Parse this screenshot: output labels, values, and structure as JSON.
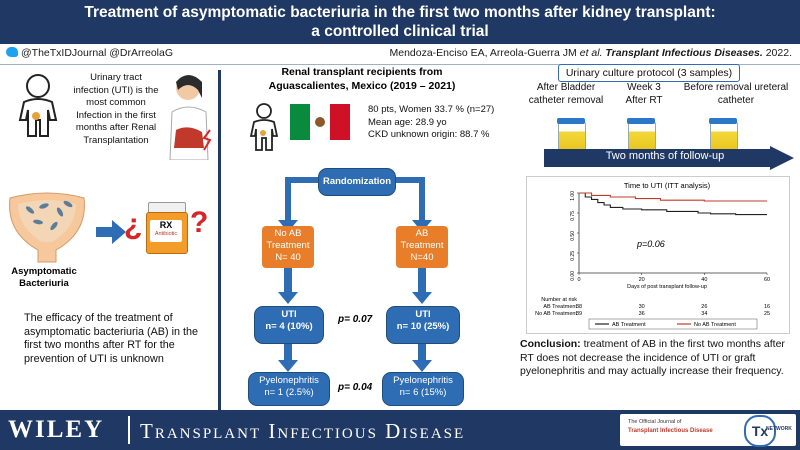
{
  "header": {
    "title_line1": "Treatment of asymptomatic bacteriuria in the first two months after kidney transplant:",
    "title_line2": "a controlled clinical trial"
  },
  "handles": {
    "twitter": "@TheTxIDJournal  @DrArreolaG",
    "citation_authors": "Mendoza-Enciso EA, Arreola-Guerra JM",
    "citation_etal": "et al.",
    "citation_journal": "Transplant Infectious Diseases.",
    "citation_year": "2022."
  },
  "left": {
    "uti_text": "Urinary tract infection (UTI) is the most common Infection in the first months after Renal Transplantation",
    "ab_label": "Asymptomatic Bacteriuria",
    "rx_label": "RX",
    "rx_sub": "Antibiotic",
    "question_mark": "?",
    "inverted_question": "¿",
    "efficacy_text": "The efficacy of the treatment of asymptomatic bacteriuria (AB) in the first two months after RT for the prevention of UTI is unknown"
  },
  "middle": {
    "cohort_title": "Renal transplant recipients from Aguascalientes, Mexico (2019 – 2021)",
    "stat1": "80 pts, Women 33.7 % (n=27)",
    "stat2": "Mean age: 28.9 yo",
    "stat3": "CKD unknown  origin: 88.7 %",
    "randomization": "Randomization",
    "no_ab_l1": "No AB",
    "no_ab_l2": "Treatment",
    "no_ab_l3": "N= 40",
    "ab_l1": "AB",
    "ab_l2": "Treatment",
    "ab_l3": "N=40",
    "uti_left_l1": "UTI",
    "uti_left_l2": "n= 4 (10%)",
    "uti_right_l1": "UTI",
    "uti_right_l2": "n= 10 (25%)",
    "p_uti": "p= 0.07",
    "pyelo_left_l1": "Pyelonephritis",
    "pyelo_left_l2": "n= 1 (2.5%)",
    "pyelo_right_l1": "Pyelonephritis",
    "pyelo_right_l2": "n= 6 (15%)",
    "p_pyelo": "p= 0.04"
  },
  "right": {
    "protocol_title": "Urinary culture protocol (3 samples)",
    "sample1": "After Bladder catheter removal",
    "sample2_l1": "Week 3",
    "sample2_l2": "After RT",
    "sample3": "Before removal ureteral catheter",
    "followup": "Two months of follow-up",
    "conclusion_label": "Conclusion:",
    "conclusion_text": " treatment of AB in the first two months after RT does not decrease the incidence of UTI or graft pyelonephritis and may actually increase their frequency."
  },
  "chart_data": {
    "type": "line",
    "title": "Time to UTI (ITT analysis)",
    "xlabel": "Days of post transplant follow-up",
    "ylabel": "",
    "xlim": [
      0,
      60
    ],
    "ylim": [
      0,
      1
    ],
    "x_ticks": [
      "0",
      "20",
      "40",
      "60"
    ],
    "y_ticks": [
      "0.00",
      "0.25",
      "0.50",
      "0.75",
      "1.00"
    ],
    "annotation": "p=0.06",
    "series": [
      {
        "name": "AB Treatment",
        "color": "#222222",
        "x": [
          0,
          2,
          4,
          6,
          8,
          10,
          14,
          20,
          28,
          38,
          42,
          50,
          60
        ],
        "y": [
          1.0,
          0.95,
          0.92,
          0.88,
          0.85,
          0.82,
          0.8,
          0.79,
          0.77,
          0.75,
          0.74,
          0.73,
          0.73
        ]
      },
      {
        "name": "No AB Treatment",
        "color": "#c0392b",
        "x": [
          0,
          4,
          10,
          18,
          26,
          34,
          40,
          50,
          60
        ],
        "y": [
          1.0,
          0.97,
          0.95,
          0.93,
          0.91,
          0.91,
          0.9,
          0.9,
          0.9
        ]
      }
    ],
    "risk_table": {
      "header": "Number at risk",
      "rows": [
        {
          "label": "AB Treatment",
          "values": [
            "38",
            "30",
            "26",
            "16"
          ]
        },
        {
          "label": "No AB Treatment",
          "values": [
            "39",
            "36",
            "34",
            "25"
          ]
        }
      ]
    },
    "legend": [
      "AB Treatment",
      "No AB Treatment"
    ]
  },
  "footer": {
    "publisher": "WILEY",
    "journal": "Transplant Infectious Disease",
    "official_small": "The Official Journal of",
    "official_journal": "Transplant Infectious Disease",
    "tx_logo": "Tx",
    "tx_network": "NETWORK"
  }
}
